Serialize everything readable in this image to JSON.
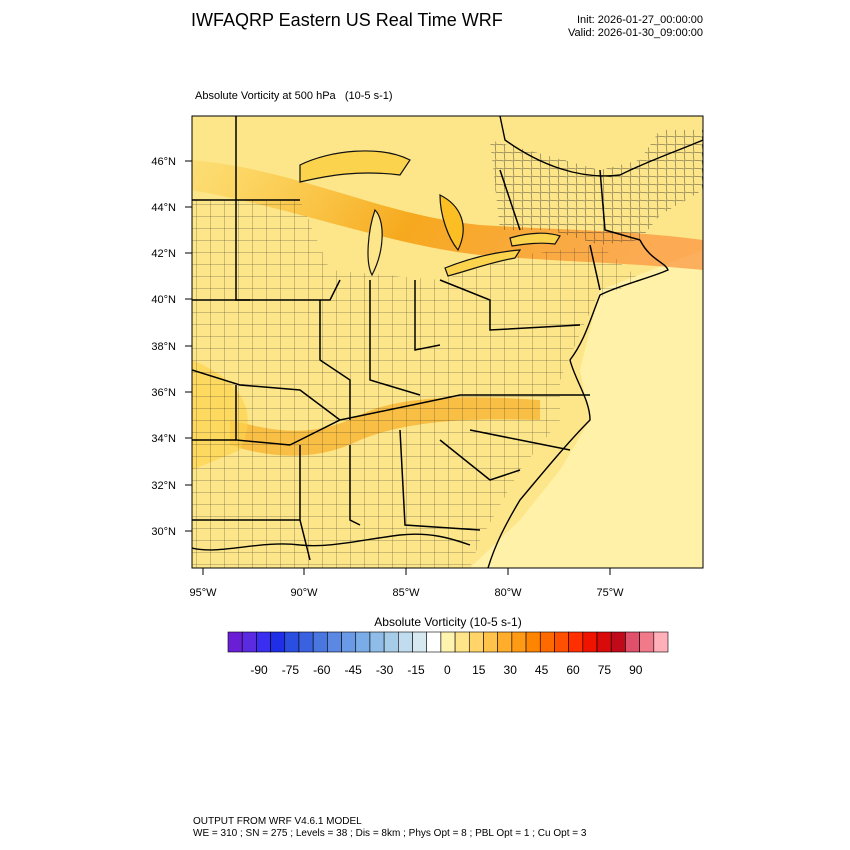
{
  "header": {
    "title": "IWFAQRP Eastern US Real Time WRF",
    "init": "Init: 2026-01-27_00:00:00",
    "valid": "Valid: 2026-01-30_09:00:00"
  },
  "map": {
    "field_label": "Absolute Vorticity at 500 hPa",
    "field_units": "(10-5 s-1)",
    "lat_labels": [
      "46°N",
      "44°N",
      "42°N",
      "40°N",
      "38°N",
      "36°N",
      "34°N",
      "32°N",
      "30°N"
    ],
    "lon_labels": [
      "95°W",
      "90°W",
      "85°W",
      "80°W",
      "75°W"
    ],
    "colors": {
      "base_fill": "#fde68a",
      "mid_fill": "#fcd34d",
      "strong_fill": "#f59e0b",
      "ocean_fill": "#fff2a8",
      "county_line": "#111111"
    }
  },
  "colorbar": {
    "title": "Absolute Vorticity  (10-5 s-1)",
    "tick_labels": [
      "-90",
      "-75",
      "-60",
      "-45",
      "-30",
      "-15",
      "0",
      "15",
      "30",
      "45",
      "60",
      "75",
      "90"
    ],
    "colors": [
      "#6a1fd6",
      "#5a2be0",
      "#3a2ef0",
      "#1f2fe8",
      "#2a4fe0",
      "#3a62e0",
      "#4a76e0",
      "#5a88e2",
      "#6a9ae6",
      "#7aace8",
      "#8fbce8",
      "#a6cce8",
      "#c0dcee",
      "#d6e8f0",
      "#ffffff",
      "#fff3b0",
      "#ffe48a",
      "#ffd56a",
      "#ffc24a",
      "#ffad2a",
      "#ff9a14",
      "#ff8400",
      "#ff6a00",
      "#ff4f00",
      "#ff2f00",
      "#f01400",
      "#d80a0a",
      "#c00a1a",
      "#e0506a",
      "#f07a8a",
      "#ffb0b8"
    ]
  },
  "footer": {
    "line1": "OUTPUT FROM WRF V4.6.1 MODEL",
    "line2": "WE = 310 ; SN = 275 ; Levels = 38 ; Dis = 8km ; Phys Opt = 8 ; PBL Opt = 1 ; Cu Opt = 3"
  }
}
